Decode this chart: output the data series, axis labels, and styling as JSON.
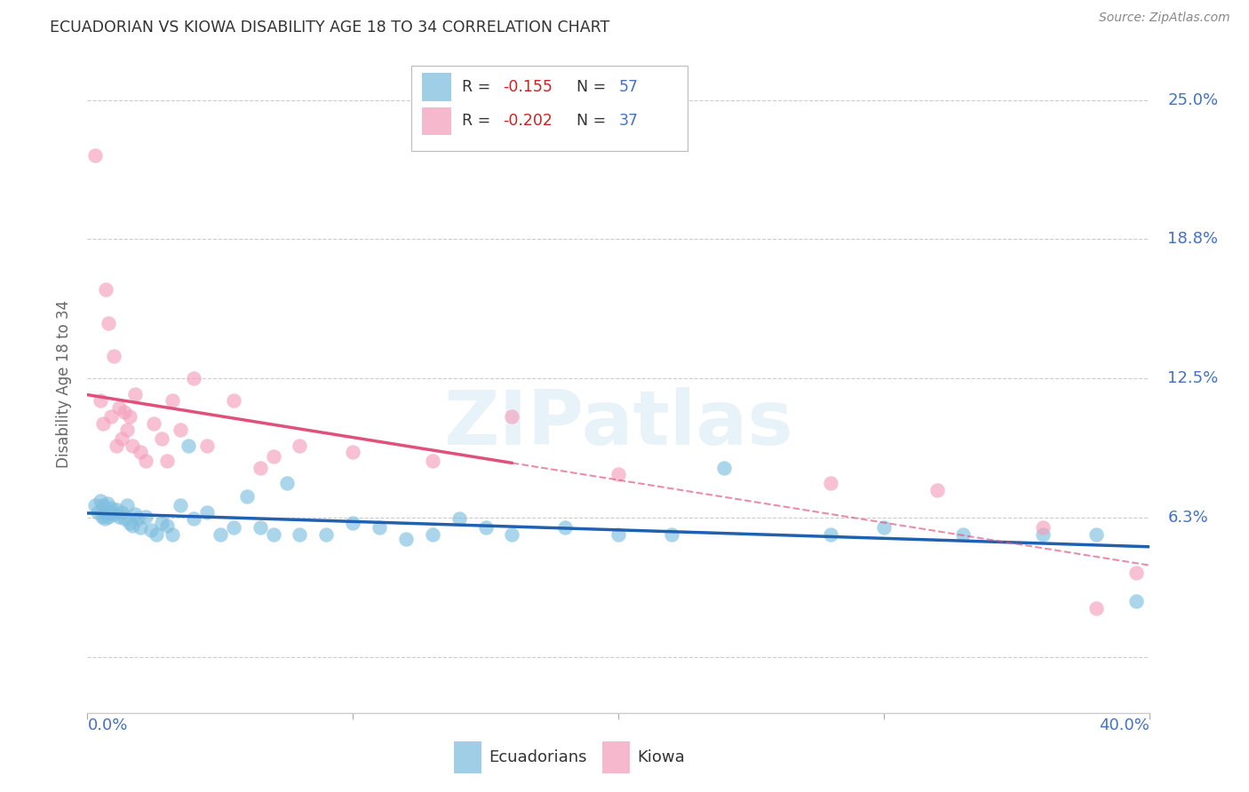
{
  "title": "ECUADORIAN VS KIOWA DISABILITY AGE 18 TO 34 CORRELATION CHART",
  "source": "Source: ZipAtlas.com",
  "ylabel": "Disability Age 18 to 34",
  "ytick_values": [
    0.0,
    6.25,
    12.5,
    18.75,
    25.0
  ],
  "ytick_labels": [
    "",
    "6.3%",
    "12.5%",
    "18.8%",
    "25.0%"
  ],
  "xmin": 0.0,
  "xmax": 40.0,
  "ymin": -2.5,
  "ymax": 27.0,
  "ecuadorians_color": "#7fbfdf",
  "kiowa_color": "#f4a0bc",
  "ecuadorians_line_color": "#2060b0",
  "kiowa_line_color": "#e0507a",
  "watermark_text": "ZIPatlas",
  "ecuadorians_x": [
    0.3,
    0.4,
    0.5,
    0.55,
    0.6,
    0.65,
    0.7,
    0.75,
    0.8,
    0.85,
    0.9,
    1.0,
    1.1,
    1.2,
    1.3,
    1.4,
    1.5,
    1.6,
    1.7,
    1.8,
    1.9,
    2.0,
    2.2,
    2.4,
    2.6,
    2.8,
    3.0,
    3.2,
    3.5,
    3.8,
    4.0,
    4.5,
    5.0,
    5.5,
    6.0,
    6.5,
    7.0,
    7.5,
    8.0,
    9.0,
    10.0,
    11.0,
    12.0,
    13.0,
    14.0,
    15.0,
    16.0,
    18.0,
    20.0,
    22.0,
    24.0,
    28.0,
    30.0,
    33.0,
    36.0,
    38.0,
    39.5
  ],
  "ecuadorians_y": [
    6.8,
    6.5,
    7.0,
    6.3,
    6.8,
    6.2,
    6.5,
    6.9,
    6.3,
    6.5,
    6.7,
    6.4,
    6.6,
    6.3,
    6.5,
    6.2,
    6.8,
    6.0,
    5.9,
    6.4,
    6.2,
    5.8,
    6.3,
    5.7,
    5.5,
    6.0,
    5.9,
    5.5,
    6.8,
    9.5,
    6.2,
    6.5,
    5.5,
    5.8,
    7.2,
    5.8,
    5.5,
    7.8,
    5.5,
    5.5,
    6.0,
    5.8,
    5.3,
    5.5,
    6.2,
    5.8,
    5.5,
    5.8,
    5.5,
    5.5,
    8.5,
    5.5,
    5.8,
    5.5,
    5.5,
    5.5,
    2.5
  ],
  "kiowa_x": [
    0.3,
    0.5,
    0.6,
    0.7,
    0.8,
    0.9,
    1.0,
    1.1,
    1.2,
    1.3,
    1.4,
    1.5,
    1.6,
    1.7,
    1.8,
    2.0,
    2.2,
    2.5,
    2.8,
    3.0,
    3.2,
    3.5,
    4.0,
    4.5,
    5.5,
    6.5,
    7.0,
    8.0,
    10.0,
    13.0,
    16.0,
    20.0,
    28.0,
    32.0,
    36.0,
    38.0,
    39.5
  ],
  "kiowa_y": [
    22.5,
    11.5,
    10.5,
    16.5,
    15.0,
    10.8,
    13.5,
    9.5,
    11.2,
    9.8,
    11.0,
    10.2,
    10.8,
    9.5,
    11.8,
    9.2,
    8.8,
    10.5,
    9.8,
    8.8,
    11.5,
    10.2,
    12.5,
    9.5,
    11.5,
    8.5,
    9.0,
    9.5,
    9.2,
    8.8,
    10.8,
    8.2,
    7.8,
    7.5,
    5.8,
    2.2,
    3.8
  ],
  "kiowa_solid_end_x": 16.0,
  "legend_r_ecu": "-0.155",
  "legend_n_ecu": "57",
  "legend_r_kiowa": "-0.202",
  "legend_n_kiowa": "37"
}
